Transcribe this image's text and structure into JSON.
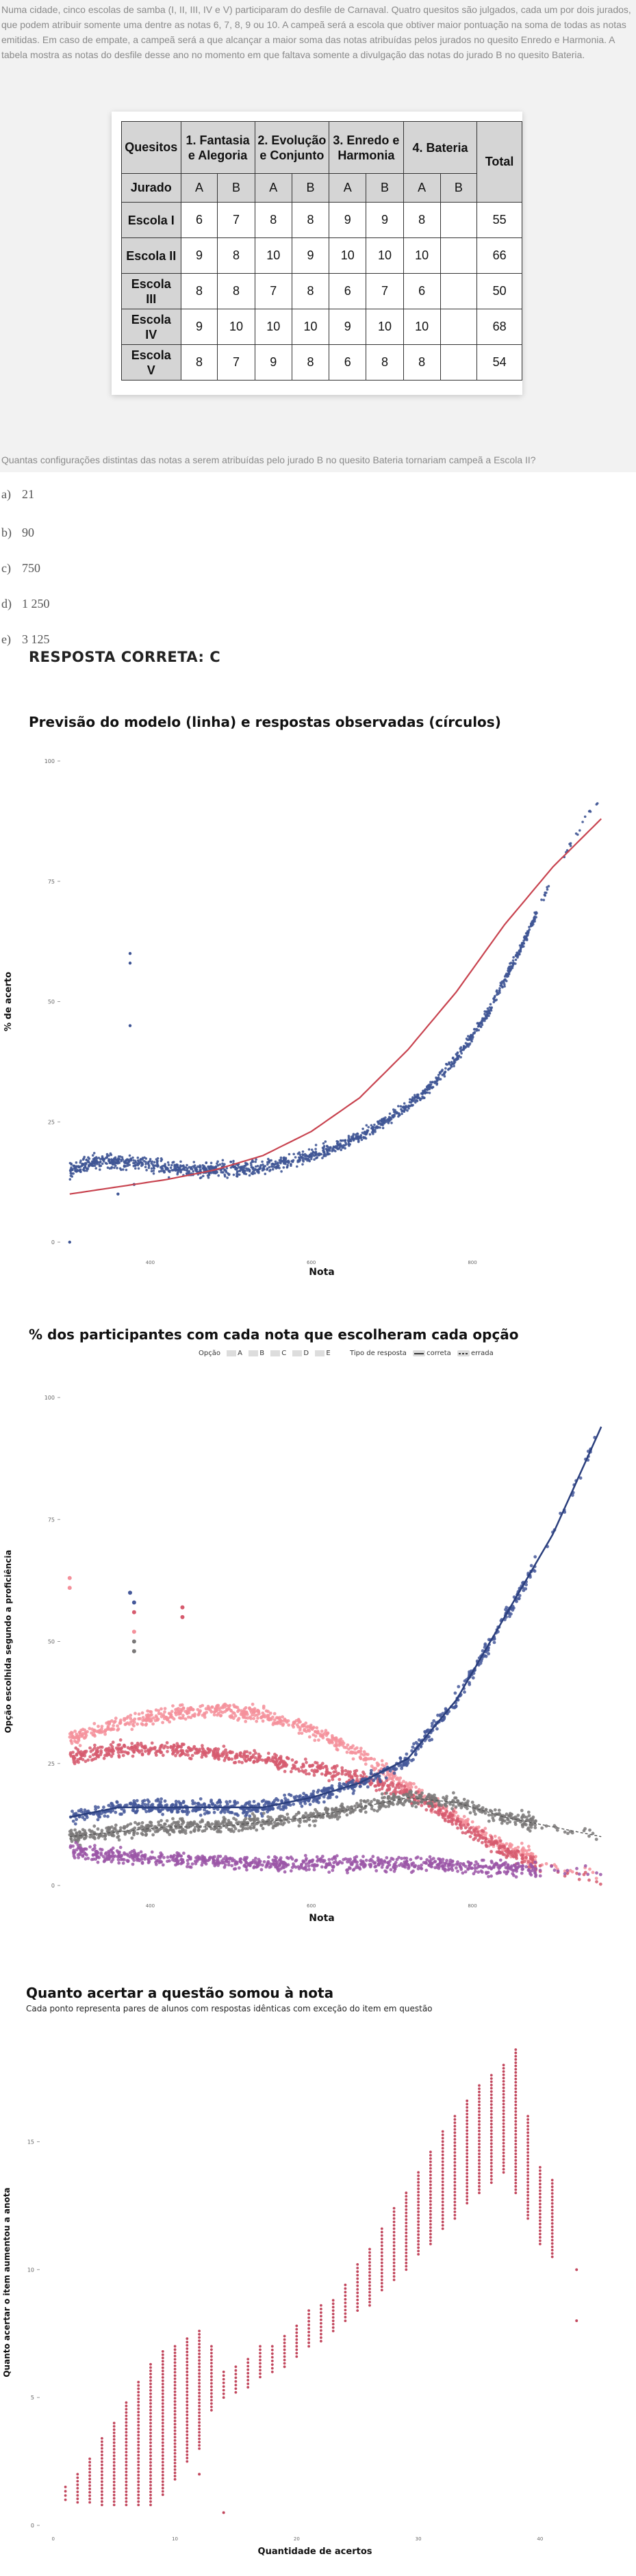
{
  "statement": {
    "text": "Numa cidade, cinco escolas de samba (I, II, III, IV e V) participaram do desfile de Carnaval. Quatro quesitos são julgados, cada um por dois jurados, que podem atribuir somente uma dentre as notas 6, 7, 8, 9 ou 10. A campeã será a escola que obtiver maior pontuação na soma de todas as notas emitidas. Em caso de empate, a campeã será a que alcançar a maior soma das notas atribuídas pelos jurados no quesito Enredo e Harmonia. A tabela mostra as notas do desfile desse ano no momento em que faltava somente a divulgação das notas do jurado B no quesito Bateria.",
    "table": {
      "header_quesitos": "Quesitos",
      "header_groups": [
        "1. Fantasia e Alegoria",
        "2. Evolução e Conjunto",
        "3. Enredo e Harmonia",
        "4. Bateria"
      ],
      "header_total": "Total",
      "jurado_label": "Jurado",
      "jurados": [
        "A",
        "B",
        "A",
        "B",
        "A",
        "B",
        "A",
        "B"
      ],
      "rows": [
        {
          "escola": "Escola I",
          "notas": [
            "6",
            "7",
            "8",
            "8",
            "9",
            "9",
            "8",
            ""
          ],
          "total": "55"
        },
        {
          "escola": "Escola II",
          "notas": [
            "9",
            "8",
            "10",
            "9",
            "10",
            "10",
            "10",
            ""
          ],
          "total": "66"
        },
        {
          "escola": "Escola III",
          "notas": [
            "8",
            "8",
            "7",
            "8",
            "6",
            "7",
            "6",
            ""
          ],
          "total": "50"
        },
        {
          "escola": "Escola IV",
          "notas": [
            "9",
            "10",
            "10",
            "10",
            "9",
            "10",
            "10",
            ""
          ],
          "total": "68"
        },
        {
          "escola": "Escola V",
          "notas": [
            "8",
            "7",
            "9",
            "8",
            "6",
            "8",
            "8",
            ""
          ],
          "total": "54"
        }
      ]
    }
  },
  "question": "Quantas configurações distintas das notas a serem atribuídas pelo jurado B no quesito Bateria tornariam campeã a Escola II?",
  "options": [
    {
      "letter": "a)",
      "value": "21"
    },
    {
      "letter": "b)",
      "value": "90"
    },
    {
      "letter": "c)",
      "value": "750"
    },
    {
      "letter": "d)",
      "value": "1 250"
    },
    {
      "letter": "e)",
      "value": "3 125"
    }
  ],
  "correct_answer": "RESPOSTA CORRETA: C",
  "chart_data": [
    {
      "type": "scatter",
      "title": "Previsão do modelo (linha) e respostas observadas (círculos)",
      "xlabel": "Nota",
      "ylabel": "% de acerto",
      "xticks": [
        "400",
        "600",
        "800"
      ],
      "xlim": [
        290,
        970
      ],
      "yticks": [
        0,
        25,
        50,
        75,
        100
      ],
      "ylim": [
        0,
        100
      ],
      "colors": {
        "points": "#3f5595",
        "model": "#c8434f"
      },
      "model_line": {
        "x": [
          300,
          360,
          420,
          480,
          540,
          600,
          660,
          720,
          780,
          840,
          900,
          960
        ],
        "y": [
          10,
          11.5,
          13,
          15,
          18,
          23,
          30,
          40,
          52,
          66,
          78,
          88
        ]
      },
      "observed_trend": {
        "x": [
          300,
          340,
          380,
          420,
          460,
          500,
          540,
          580,
          620,
          660,
          700,
          740,
          780,
          820,
          860,
          900,
          940,
          960
        ],
        "y": [
          15,
          17,
          16.5,
          15.5,
          15,
          15,
          15.5,
          17,
          19,
          22,
          26,
          31,
          38,
          48,
          61,
          76,
          88,
          93
        ]
      },
      "outliers": [
        {
          "x": 375,
          "y": 60
        },
        {
          "x": 375,
          "y": 58
        },
        {
          "x": 375,
          "y": 45
        },
        {
          "x": 300,
          "y": 0
        },
        {
          "x": 360,
          "y": 10
        },
        {
          "x": 380,
          "y": 12
        }
      ]
    },
    {
      "type": "scatter",
      "title": "% dos participantes com cada nota que escolheram cada opção",
      "xlabel": "Nota",
      "ylabel": "Opção escolhida segundo a proficiência",
      "xticks": [
        "400",
        "600",
        "800"
      ],
      "xlim": [
        290,
        970
      ],
      "yticks": [
        0,
        25,
        50,
        75,
        100
      ],
      "ylim": [
        0,
        100
      ],
      "legend": {
        "option_label": "Opção",
        "options": [
          "A",
          "B",
          "C",
          "D",
          "E"
        ],
        "type_label": "Tipo de resposta",
        "types": [
          "correta",
          "errada"
        ]
      },
      "series": [
        {
          "name": "A",
          "color": "#f4909b",
          "x": [
            300,
            360,
            420,
            480,
            540,
            600,
            660,
            720,
            780,
            840,
            900,
            960
          ],
          "y": [
            30,
            33,
            35,
            36,
            35,
            32,
            27,
            20,
            14,
            8,
            4,
            2
          ]
        },
        {
          "name": "B",
          "color": "#d65b6e",
          "x": [
            300,
            360,
            420,
            480,
            540,
            600,
            660,
            720,
            780,
            840,
            900,
            960
          ],
          "y": [
            26,
            28,
            28,
            27,
            26,
            24,
            22,
            19,
            13,
            7,
            3,
            1
          ]
        },
        {
          "name": "C",
          "color": "#45589a",
          "x": [
            300,
            360,
            420,
            480,
            540,
            600,
            660,
            720,
            780,
            840,
            900,
            960
          ],
          "y": [
            14,
            16,
            16,
            16,
            16,
            18,
            21,
            26,
            38,
            55,
            72,
            94
          ]
        },
        {
          "name": "D",
          "color": "#7a7878",
          "x": [
            300,
            360,
            420,
            480,
            540,
            600,
            660,
            720,
            780,
            840,
            900,
            960
          ],
          "y": [
            10,
            11,
            12,
            12,
            13,
            14,
            16,
            18,
            17,
            14,
            12,
            10
          ]
        },
        {
          "name": "E",
          "color": "#9b56a7",
          "x": [
            300,
            360,
            420,
            480,
            540,
            600,
            660,
            720,
            780,
            840,
            900,
            960
          ],
          "y": [
            7,
            6,
            5.5,
            5,
            4.5,
            4.5,
            4.5,
            4.5,
            4,
            3.5,
            3,
            3
          ]
        }
      ],
      "outliers": [
        {
          "series": "A",
          "x": 300,
          "y": 63
        },
        {
          "series": "A",
          "x": 300,
          "y": 61
        },
        {
          "series": "C",
          "x": 375,
          "y": 60
        },
        {
          "series": "C",
          "x": 380,
          "y": 58
        },
        {
          "series": "D",
          "x": 380,
          "y": 50
        },
        {
          "series": "D",
          "x": 380,
          "y": 48
        },
        {
          "series": "B",
          "x": 440,
          "y": 57
        },
        {
          "series": "B",
          "x": 440,
          "y": 55
        },
        {
          "series": "A",
          "x": 380,
          "y": 52
        },
        {
          "series": "B",
          "x": 380,
          "y": 56
        }
      ]
    },
    {
      "type": "scatter",
      "title": "Quanto acertar a questão somou à nota",
      "subtitle": "Cada ponto representa pares de alunos com respostas idênticas com exceção do item em questão",
      "xlabel": "Quantidade de acertos",
      "ylabel": "Quanto acertar o item aumentou a anota",
      "xticks": [
        0,
        10,
        20,
        30,
        40
      ],
      "xlim": [
        -1,
        44
      ],
      "yticks": [
        0,
        5,
        10,
        15
      ],
      "ylim": [
        0,
        19
      ],
      "color": "#c2485e",
      "columns": [
        {
          "x": 1,
          "min": 1,
          "max": 1.5
        },
        {
          "x": 2,
          "min": 0.9,
          "max": 2.0
        },
        {
          "x": 3,
          "min": 0.9,
          "max": 2.6
        },
        {
          "x": 4,
          "min": 0.8,
          "max": 3.4
        },
        {
          "x": 5,
          "min": 0.8,
          "max": 4.0
        },
        {
          "x": 6,
          "min": 0.8,
          "max": 4.8
        },
        {
          "x": 7,
          "min": 0.8,
          "max": 5.6
        },
        {
          "x": 8,
          "min": 0.8,
          "max": 6.3
        },
        {
          "x": 9,
          "min": 1.2,
          "max": 6.8
        },
        {
          "x": 10,
          "min": 1.8,
          "max": 7.0
        },
        {
          "x": 11,
          "min": 2.5,
          "max": 7.3
        },
        {
          "x": 12,
          "min": 3.0,
          "max": 7.6
        },
        {
          "x": 13,
          "min": 4.5,
          "max": 7.0
        },
        {
          "x": 14,
          "min": 5.0,
          "max": 6.0
        },
        {
          "x": 15,
          "min": 5.2,
          "max": 6.2
        },
        {
          "x": 16,
          "min": 5.4,
          "max": 6.5
        },
        {
          "x": 17,
          "min": 5.8,
          "max": 7.0
        },
        {
          "x": 18,
          "min": 6.0,
          "max": 7.0
        },
        {
          "x": 19,
          "min": 6.2,
          "max": 7.4
        },
        {
          "x": 20,
          "min": 6.6,
          "max": 7.8
        },
        {
          "x": 21,
          "min": 7.0,
          "max": 8.4
        },
        {
          "x": 22,
          "min": 7.2,
          "max": 8.6
        },
        {
          "x": 23,
          "min": 7.6,
          "max": 8.8
        },
        {
          "x": 24,
          "min": 8.0,
          "max": 9.4
        },
        {
          "x": 25,
          "min": 8.4,
          "max": 10.2
        },
        {
          "x": 26,
          "min": 8.6,
          "max": 10.8
        },
        {
          "x": 27,
          "min": 9.2,
          "max": 11.6
        },
        {
          "x": 28,
          "min": 9.6,
          "max": 12.4
        },
        {
          "x": 29,
          "min": 10.0,
          "max": 13.0
        },
        {
          "x": 30,
          "min": 10.6,
          "max": 13.8
        },
        {
          "x": 31,
          "min": 11.0,
          "max": 14.6
        },
        {
          "x": 32,
          "min": 11.6,
          "max": 15.4
        },
        {
          "x": 33,
          "min": 12.0,
          "max": 16.0
        },
        {
          "x": 34,
          "min": 12.6,
          "max": 16.6
        },
        {
          "x": 35,
          "min": 13.0,
          "max": 17.2
        },
        {
          "x": 36,
          "min": 13.4,
          "max": 17.6
        },
        {
          "x": 37,
          "min": 13.8,
          "max": 18.0
        },
        {
          "x": 38,
          "min": 13.0,
          "max": 18.6
        },
        {
          "x": 39,
          "min": 12.0,
          "max": 16.0
        },
        {
          "x": 40,
          "min": 11.0,
          "max": 14.0
        },
        {
          "x": 41,
          "min": 10.5,
          "max": 13.5
        }
      ],
      "outliers": [
        {
          "x": 43,
          "y": 10
        },
        {
          "x": 43,
          "y": 8
        },
        {
          "x": 14,
          "y": 0.5
        },
        {
          "x": 12,
          "y": 2
        }
      ]
    }
  ]
}
